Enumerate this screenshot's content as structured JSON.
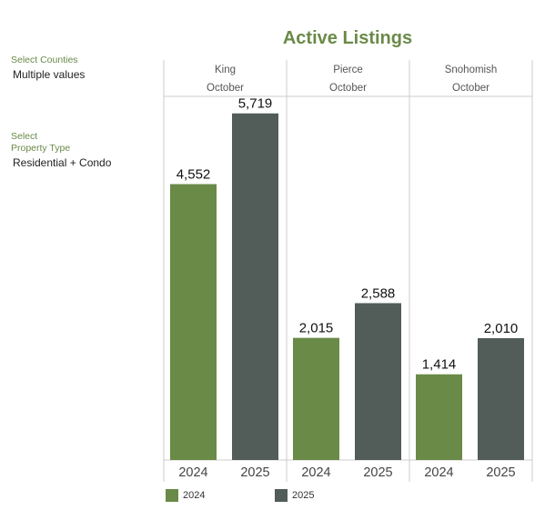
{
  "filters": {
    "counties_label": "Select Counties",
    "counties_value": "Multiple values",
    "property_type_label_line1": "Select",
    "property_type_label_line2": "Property Type",
    "property_type_value": "Residential + Condo"
  },
  "colors": {
    "accent": "#6a8a48",
    "series_2024": "#6a8a48",
    "series_2025": "#525c59",
    "grid": "#cccccc"
  },
  "chart_data": {
    "type": "bar",
    "title": "Active Listings",
    "ylim": [
      0,
      6000
    ],
    "groups": [
      {
        "county": "King",
        "month": "October",
        "categories": [
          "2024",
          "2025"
        ],
        "values": [
          4552,
          5719
        ],
        "labels": [
          "4,552",
          "5,719"
        ]
      },
      {
        "county": "Pierce",
        "month": "October",
        "categories": [
          "2024",
          "2025"
        ],
        "values": [
          2015,
          2588
        ],
        "labels": [
          "2,015",
          "2,588"
        ]
      },
      {
        "county": "Snohomish",
        "month": "October",
        "categories": [
          "2024",
          "2025"
        ],
        "values": [
          1414,
          2010
        ],
        "labels": [
          "1,414",
          "2,010"
        ]
      }
    ],
    "legend": [
      {
        "name": "2024",
        "color": "#6a8a48"
      },
      {
        "name": "2025",
        "color": "#525c59"
      }
    ],
    "legend_position": "bottom"
  }
}
